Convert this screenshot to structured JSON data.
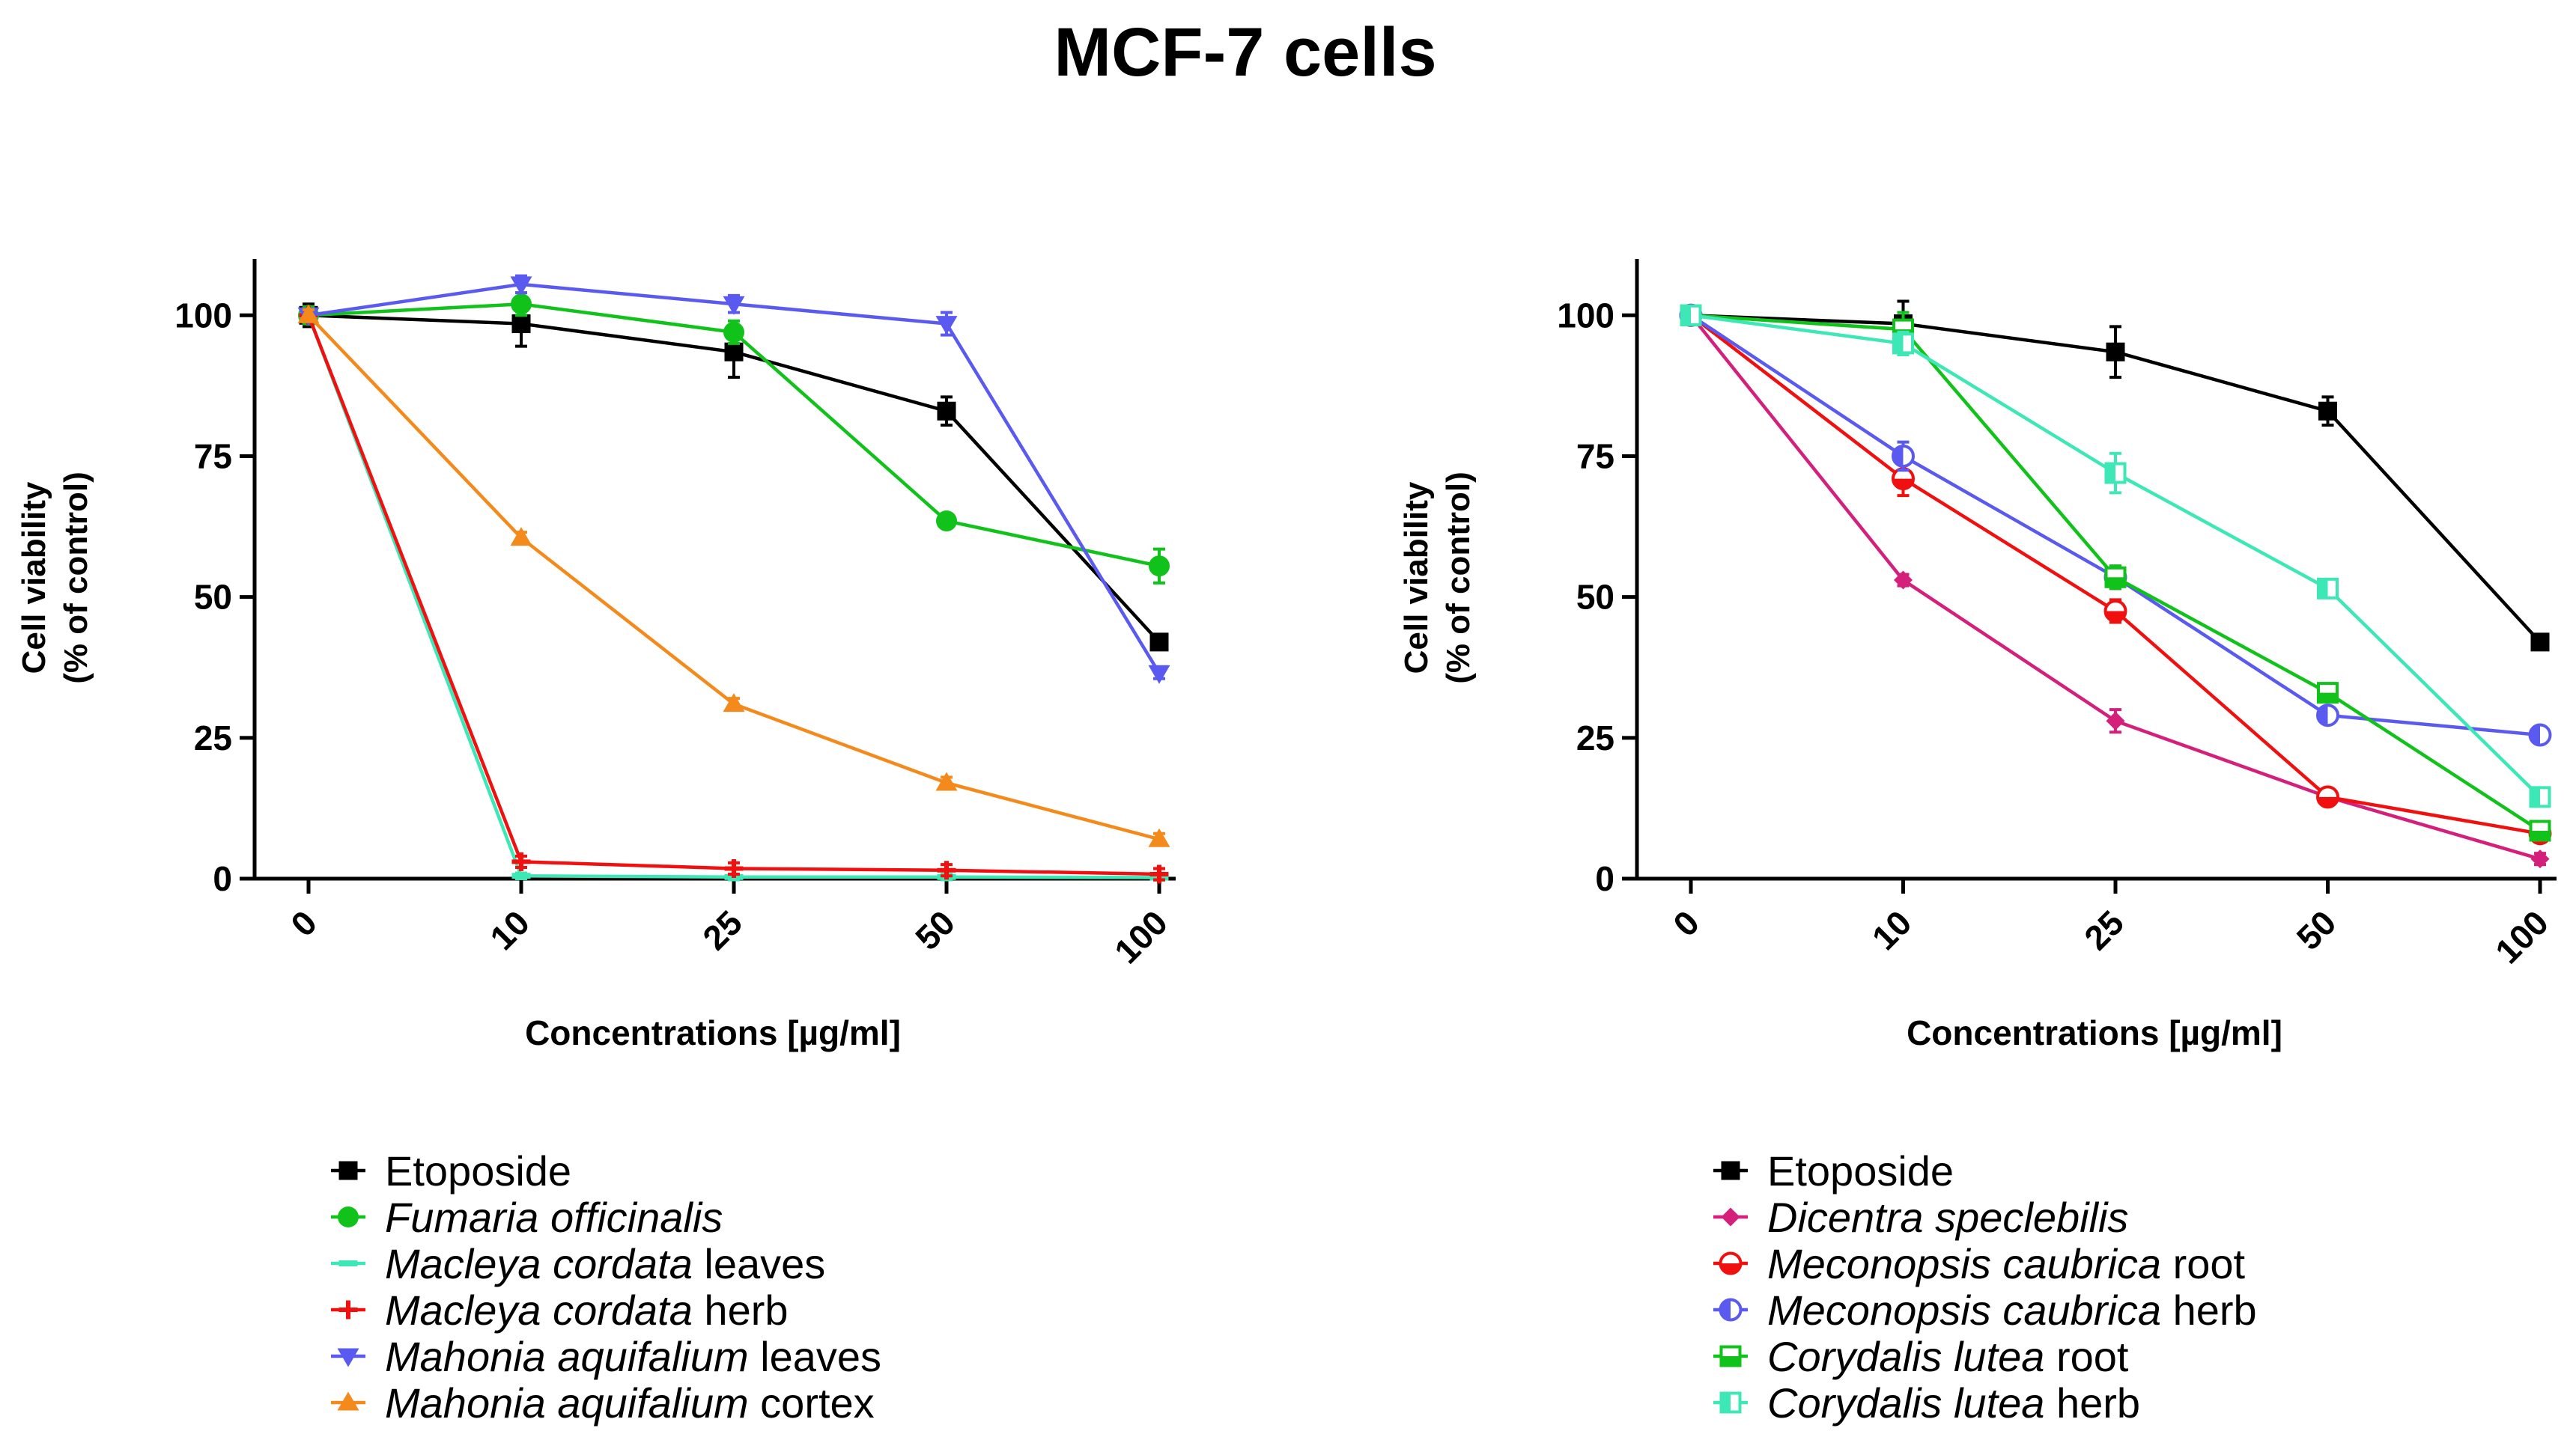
{
  "title": "MCF-7 cells",
  "chart_data": [
    {
      "type": "line",
      "name": "left-panel",
      "title": "",
      "xlabel": "Concentrations [µg/ml]",
      "ylabel_line1": "Cell viability",
      "ylabel_line2": "(% of control)",
      "categories": [
        "0",
        "10",
        "25",
        "50",
        "100"
      ],
      "yticks": [
        0,
        25,
        50,
        75,
        100
      ],
      "ylim": [
        0,
        110
      ],
      "series": [
        {
          "name": "Etoposide",
          "species": "",
          "suffix": "",
          "label_is_italic": false,
          "color": "#000000",
          "marker": "square",
          "values": [
            100,
            98.5,
            93.5,
            83,
            42
          ],
          "errors": [
            2,
            4,
            4.5,
            2.5,
            1
          ]
        },
        {
          "name": "Fumaria officinalis",
          "species": "Fumaria officinalis",
          "suffix": "",
          "label_is_italic": true,
          "color": "#11c21a",
          "marker": "circle",
          "values": [
            100,
            102,
            97,
            63.5,
            55.5
          ],
          "errors": [
            1.5,
            2,
            2,
            1,
            3
          ]
        },
        {
          "name": "Macleya cordata leaves",
          "species": "Macleya cordata",
          "suffix": " leaves",
          "label_is_italic": true,
          "color": "#3de8b6",
          "marker": "dash",
          "values": [
            100,
            0.5,
            0.3,
            0.3,
            0.2
          ],
          "errors": [
            1,
            0.5,
            0.5,
            0.5,
            0.5
          ]
        },
        {
          "name": "Macleya cordata herb",
          "species": "Macleya cordata",
          "suffix": " herb",
          "label_is_italic": true,
          "color": "#f01010",
          "marker": "plus",
          "values": [
            100,
            3,
            1.8,
            1.5,
            0.8
          ],
          "errors": [
            1,
            1,
            1,
            1,
            1
          ]
        },
        {
          "name": "Mahonia aquifalium leaves",
          "species": "Mahonia aquifalium",
          "suffix": " leaves",
          "label_is_italic": true,
          "color": "#5a5af0",
          "marker": "triangle-down",
          "values": [
            100,
            105.5,
            102,
            98.5,
            36.5
          ],
          "errors": [
            1,
            1.5,
            1.5,
            2,
            1
          ]
        },
        {
          "name": "Mahonia aquifalium cortex",
          "species": "Mahonia aquifalium",
          "suffix": " cortex",
          "label_is_italic": true,
          "color": "#f58a1c",
          "marker": "triangle-up",
          "values": [
            100,
            60.5,
            31,
            17,
            7
          ],
          "errors": [
            1,
            1,
            1,
            1,
            1
          ]
        }
      ]
    },
    {
      "type": "line",
      "name": "right-panel",
      "title": "",
      "xlabel": "Concentrations [µg/ml]",
      "ylabel_line1": "Cell viability",
      "ylabel_line2": "(% of control)",
      "categories": [
        "0",
        "10",
        "25",
        "50",
        "100"
      ],
      "yticks": [
        0,
        25,
        50,
        75,
        100
      ],
      "ylim": [
        0,
        110
      ],
      "series": [
        {
          "name": "Etoposide",
          "species": "",
          "suffix": "",
          "label_is_italic": false,
          "color": "#000000",
          "marker": "square",
          "values": [
            100,
            98.5,
            93.5,
            83,
            42
          ],
          "errors": [
            1,
            4,
            4.5,
            2.5,
            1
          ]
        },
        {
          "name": "Dicentra speclebilis",
          "species": "Dicentra speclebilis",
          "suffix": "",
          "label_is_italic": true,
          "color": "#d4207a",
          "marker": "diamond",
          "values": [
            100,
            53,
            28,
            14.5,
            3.5
          ],
          "errors": [
            1,
            1,
            2,
            1,
            1
          ]
        },
        {
          "name": "Meconopsis caubrica root",
          "species": "Meconopsis caubrica",
          "suffix": " root",
          "label_is_italic": true,
          "color": "#f01010",
          "marker": "circle-half",
          "values": [
            100,
            71,
            47.5,
            14.5,
            8
          ],
          "errors": [
            1,
            3,
            2,
            1,
            1
          ]
        },
        {
          "name": "Meconopsis caubrica herb",
          "species": "Meconopsis caubrica",
          "suffix": " herb",
          "label_is_italic": true,
          "color": "#5a5af0",
          "marker": "circle-half-v",
          "values": [
            100,
            75,
            53.5,
            29,
            25.5
          ],
          "errors": [
            1,
            2.5,
            2,
            1,
            1
          ]
        },
        {
          "name": "Corydalis lutea root",
          "species": "Corydalis lutea",
          "suffix": " root",
          "label_is_italic": true,
          "color": "#11c21a",
          "marker": "square-half",
          "values": [
            100,
            97.5,
            53.5,
            33,
            8.5
          ],
          "errors": [
            1,
            3,
            2,
            1,
            1
          ]
        },
        {
          "name": "Corydalis lutea herb",
          "species": "Corydalis lutea",
          "suffix": " herb",
          "label_is_italic": true,
          "color": "#3de8b6",
          "marker": "square-half-v",
          "values": [
            100,
            95,
            72,
            51.5,
            14.5
          ],
          "errors": [
            1,
            2,
            3.5,
            1.5,
            1
          ]
        }
      ]
    }
  ]
}
